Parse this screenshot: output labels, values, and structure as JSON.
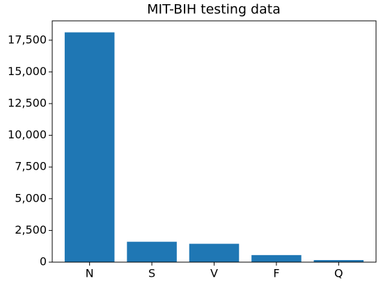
{
  "chart_data": {
    "type": "bar",
    "title": "MIT-BIH testing data",
    "categories": [
      "N",
      "S",
      "V",
      "F",
      "Q"
    ],
    "values": [
      18118,
      1608,
      1448,
      556,
      162
    ],
    "color": "#1f77b4",
    "ylim": [
      0,
      19024
    ],
    "yticks": [
      0,
      {
        "value": 2500,
        "label": "2,500"
      },
      {
        "value": 5000,
        "label": "5,000"
      },
      {
        "value": 7500,
        "label": "7,500"
      },
      {
        "value": 10000,
        "label": "10,000"
      },
      {
        "value": 12500,
        "label": "12,500"
      },
      {
        "value": 15000,
        "label": "15,000"
      },
      {
        "value": 17500,
        "label": "17,500"
      }
    ],
    "grid": false
  }
}
